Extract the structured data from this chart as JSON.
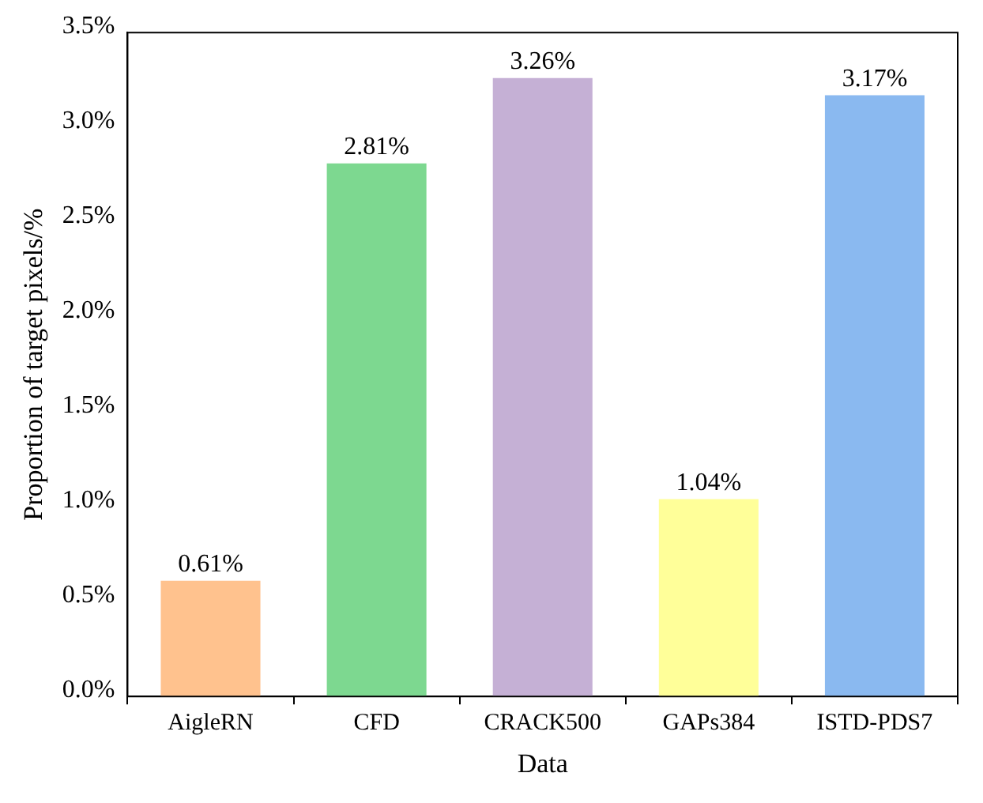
{
  "chart_data": {
    "type": "bar",
    "xlabel": "Data",
    "ylabel": "Proportion of target pixels/%",
    "categories": [
      "AigleRN",
      "CFD",
      "CRACK500",
      "GAPs384",
      "ISTD-PDS7"
    ],
    "values": [
      0.61,
      2.81,
      3.26,
      1.04,
      3.17
    ],
    "colors": [
      "#ffc28e",
      "#7dd890",
      "#c5b0d5",
      "#ffff99",
      "#8ab9f0"
    ],
    "value_labels": [
      "0.61%",
      "2.81%",
      "3.26%",
      "1.04%",
      "3.17%"
    ],
    "ylim": [
      0,
      3.5
    ],
    "yticks": [
      {
        "value": 0,
        "label": "0.0%"
      },
      {
        "value": 0.5,
        "label": "0.5%"
      },
      {
        "value": 1,
        "label": "1.0%"
      },
      {
        "value": 1.5,
        "label": "1.5%"
      },
      {
        "value": 2,
        "label": "2.0%"
      },
      {
        "value": 2.5,
        "label": "2.5%"
      },
      {
        "value": 3,
        "label": "3.0%"
      },
      {
        "value": 3.5,
        "label": "3.5%"
      }
    ],
    "grid": false,
    "legend": false
  }
}
